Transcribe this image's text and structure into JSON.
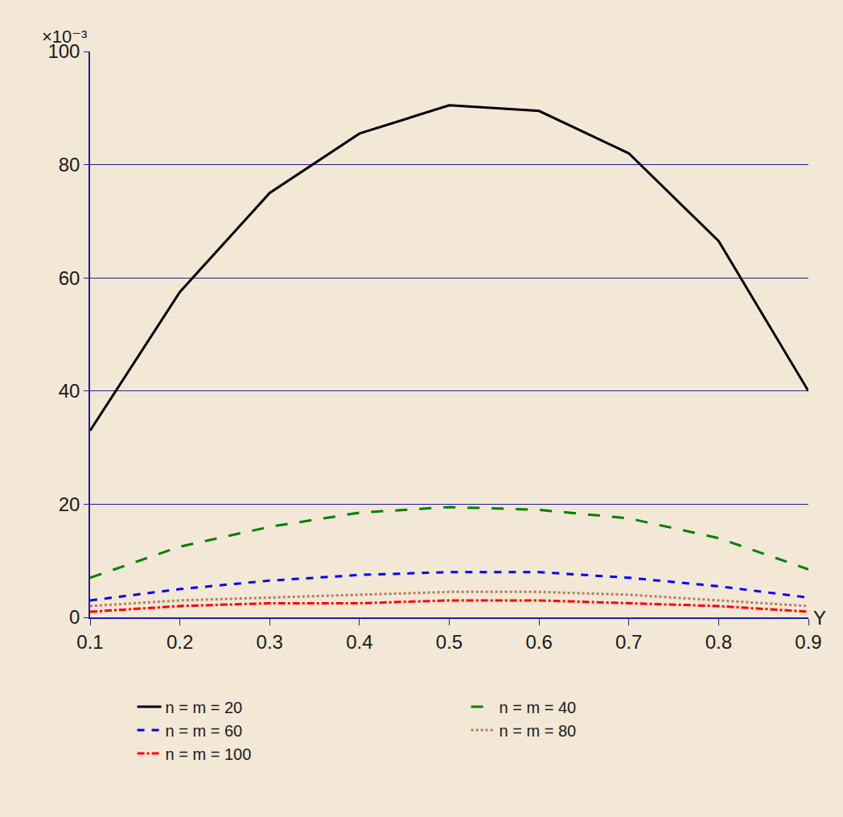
{
  "chart_data": {
    "type": "line",
    "y_label": "×10⁻³",
    "x_label": "Y",
    "x": [
      0.1,
      0.2,
      0.3,
      0.4,
      0.5,
      0.6,
      0.7,
      0.8,
      0.9
    ],
    "series": [
      {
        "name": "n = m = 20",
        "color": "#000000",
        "line_style": "solid",
        "values": [
          33,
          57.5,
          75,
          85.5,
          90.5,
          89.5,
          82,
          66.5,
          40
        ]
      },
      {
        "name": "n = m = 40",
        "color": "#008000",
        "line_style": "longdash",
        "values": [
          7,
          12.5,
          16,
          18.5,
          19.5,
          19,
          17.5,
          14,
          8.5
        ]
      },
      {
        "name": "n = m = 60",
        "color": "#0000ff",
        "line_style": "dash",
        "values": [
          3,
          5,
          6.5,
          7.5,
          8,
          8,
          7,
          5.5,
          3.5
        ]
      },
      {
        "name": "n = m = 80",
        "color": "#b0805a",
        "line_style": "dot",
        "values": [
          2,
          3,
          3.5,
          4,
          4.5,
          4.5,
          4,
          3,
          2
        ]
      },
      {
        "name": "n = m = 100",
        "color": "#ff0000",
        "line_style": "dashdot",
        "values": [
          1,
          2,
          2.5,
          2.5,
          3,
          3,
          2.5,
          2,
          1
        ]
      }
    ],
    "xlim": [
      0.1,
      0.9
    ],
    "xticks": [
      0.1,
      0.2,
      0.3,
      0.4,
      0.5,
      0.6,
      0.7,
      0.8,
      0.9
    ],
    "ylim": [
      0,
      100
    ],
    "yticks": [
      0,
      20,
      40,
      60,
      80,
      100
    ],
    "grid": true,
    "legend": "bottom"
  }
}
